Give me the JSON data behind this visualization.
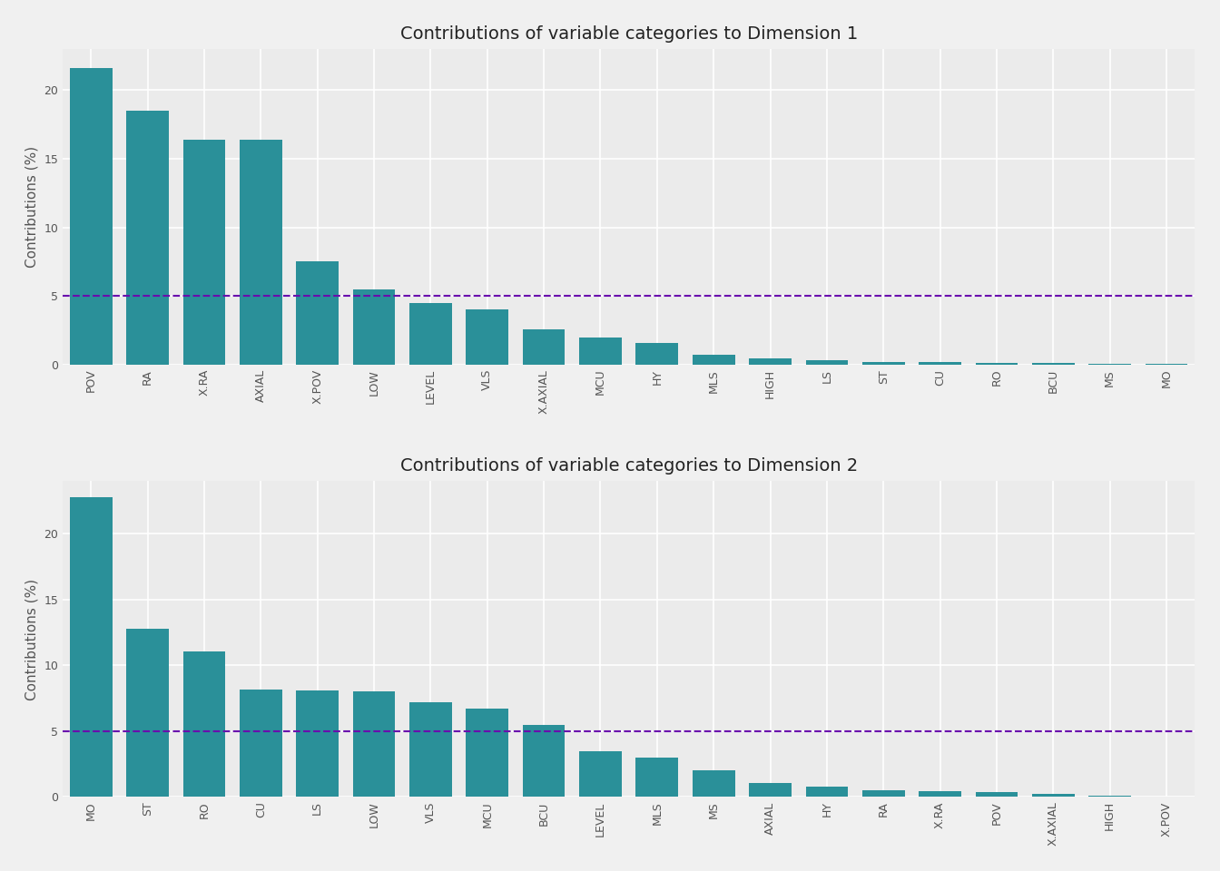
{
  "dim1": {
    "title": "Contributions of variable categories to Dimension 1",
    "categories": [
      "POV",
      "RA",
      "X.RA",
      "AXIAL",
      "X.POV",
      "LOW",
      "LEVEL",
      "VLS",
      "X.AXIAL",
      "MCU",
      "HY",
      "MLS",
      "HIGH",
      "LS",
      "ST",
      "CU",
      "RO",
      "BCU",
      "MS",
      "MO"
    ],
    "values": [
      21.6,
      18.5,
      16.4,
      16.4,
      7.5,
      5.5,
      4.5,
      4.0,
      2.6,
      2.0,
      1.6,
      0.7,
      0.45,
      0.35,
      0.2,
      0.2,
      0.15,
      0.1,
      0.05,
      0.05
    ],
    "yticks": [
      0,
      5,
      10,
      15,
      20
    ],
    "ylim": [
      0,
      23
    ]
  },
  "dim2": {
    "title": "Contributions of variable categories to Dimension 2",
    "categories": [
      "MO",
      "ST",
      "RO",
      "CU",
      "LS",
      "LOW",
      "VLS",
      "MCU",
      "BCU",
      "LEVEL",
      "MLS",
      "MS",
      "AXIAL",
      "HY",
      "RA",
      "X.RA",
      "POV",
      "X.AXIAL",
      "HIGH",
      "X.POV"
    ],
    "values": [
      22.8,
      12.8,
      11.1,
      8.2,
      8.1,
      8.0,
      7.2,
      6.7,
      5.5,
      3.5,
      3.0,
      2.0,
      1.1,
      0.8,
      0.55,
      0.45,
      0.35,
      0.25,
      0.1,
      0.05
    ],
    "yticks": [
      0,
      5,
      10,
      15,
      20
    ],
    "ylim": [
      0,
      24
    ]
  },
  "bar_color": "#2a9099",
  "dashed_line_y": 5.0,
  "dashed_line_color": "#6a0dad",
  "ylabel": "Contributions (%)",
  "fig_background": "#f0f0f0",
  "ax_background": "#ebebeb",
  "grid_color": "#ffffff",
  "title_fontsize": 14,
  "tick_fontsize": 9,
  "ylabel_fontsize": 11,
  "title_color": "#222222",
  "tick_color": "#555555"
}
